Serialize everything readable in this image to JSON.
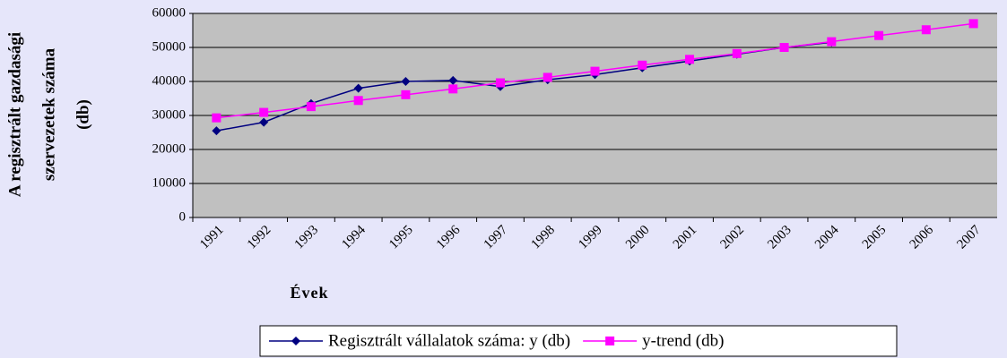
{
  "chart_data": {
    "type": "line",
    "y_label": [
      "A regisztrált gazdasági",
      "szervezetek száma",
      "(db)"
    ],
    "x_label": "Évek",
    "categories": [
      "1991",
      "1992",
      "1993",
      "1994",
      "1995",
      "1996",
      "1997",
      "1998",
      "1999",
      "2000",
      "2001",
      "2002",
      "2003",
      "2004",
      "2005",
      "2006",
      "2007"
    ],
    "series": [
      {
        "name": "Regisztrált vállalatok száma: y (db)",
        "color": "#000080",
        "marker": "diamond",
        "values": [
          25500,
          28000,
          33500,
          38000,
          40000,
          40300,
          38500,
          40500,
          42000,
          44000,
          46000,
          48000,
          50000,
          51500,
          null,
          null,
          null
        ]
      },
      {
        "name": "y-trend (db)",
        "color": "#ff00ff",
        "marker": "square",
        "values": [
          29300,
          30900,
          32600,
          34400,
          36100,
          37800,
          39600,
          41200,
          43000,
          44800,
          46500,
          48200,
          50000,
          51700,
          53500,
          55200,
          57000
        ]
      }
    ],
    "ylim": [
      0,
      60000
    ],
    "yticks": [
      0,
      10000,
      20000,
      30000,
      40000,
      50000,
      60000
    ],
    "grid": true,
    "plot_background": "#c0c0c0",
    "legend": "bottom"
  }
}
